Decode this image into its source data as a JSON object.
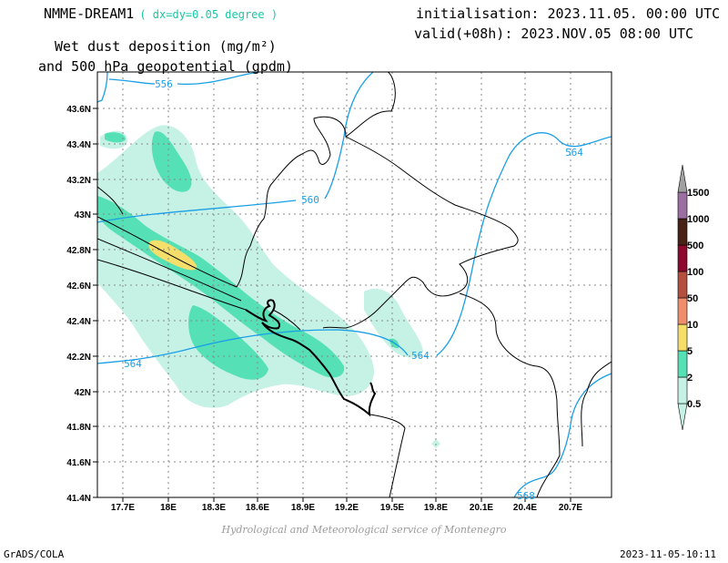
{
  "header": {
    "model": "NMME-DREAM1",
    "resolution": "( dx=dy=0.05 degree )",
    "init": "initialisation: 2023.11.05. 00:00 UTC",
    "valid": "valid(+08h): 2023.NOV.05 08:00 UTC",
    "title_line1": "Wet dust deposition (mg/m²)",
    "title_line2": "and 500 hPa geopotential (gpdm)"
  },
  "map": {
    "lon_ticks": [
      "17.7E",
      "18E",
      "18.3E",
      "18.6E",
      "18.9E",
      "19.2E",
      "19.5E",
      "19.8E",
      "20.1E",
      "20.4E",
      "20.7E"
    ],
    "lat_ticks": [
      "43.6N",
      "43.4N",
      "43.2N",
      "43N",
      "42.8N",
      "42.6N",
      "42.4N",
      "42.2N",
      "42N",
      "41.8N",
      "41.6N",
      "41.4N"
    ],
    "contour_labels": [
      "556",
      "560",
      "564",
      "564",
      "564",
      "568"
    ],
    "colors": {
      "contour": "#1a9fe6",
      "border": "#000000",
      "grid": "#888888"
    }
  },
  "colorbar": {
    "levels": [
      "0.5",
      "2",
      "5",
      "10",
      "50",
      "100",
      "500",
      "1000",
      "1500"
    ],
    "colors": [
      "#c6f2e6",
      "#56e0b6",
      "#f5df6a",
      "#ef8e6c",
      "#b4503e",
      "#8b0a2e",
      "#472215",
      "#9c6fa3",
      "#a0a0a0"
    ]
  },
  "footer": {
    "credit": "Hydrological and Meteorological service of Montenegro",
    "software": "GrADS/COLA",
    "timestamp": "2023-11-05-10:11"
  }
}
